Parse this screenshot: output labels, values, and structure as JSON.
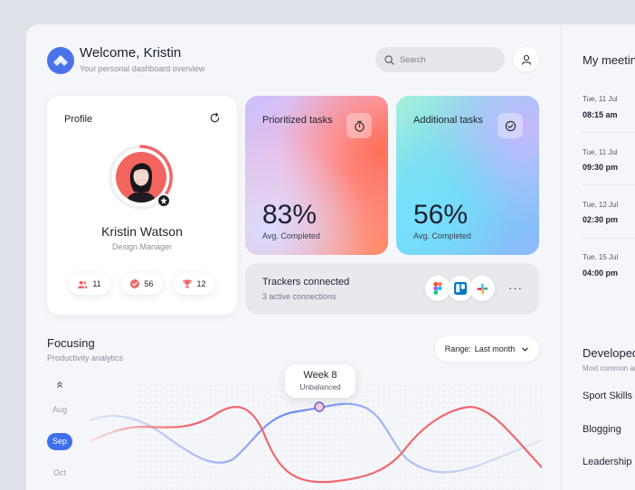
{
  "header": {
    "welcome": "Welcome, Kristin",
    "subtitle": "Your personal dashboard overview",
    "search_placeholder": "Search"
  },
  "profile": {
    "title": "Profile",
    "name": "Kristin Watson",
    "role": "Design Manager",
    "stats": [
      {
        "icon": "users-icon",
        "value": "11"
      },
      {
        "icon": "check-circle-icon",
        "value": "56"
      },
      {
        "icon": "trophy-icon",
        "value": "12"
      }
    ]
  },
  "cards": {
    "prioritized": {
      "title": "Prioritized tasks",
      "value": "83%",
      "sub": "Avg. Completed",
      "icon": "stopwatch-icon"
    },
    "additional": {
      "title": "Additional tasks",
      "value": "56%",
      "sub": "Avg. Completed",
      "icon": "check-circle-icon"
    }
  },
  "trackers": {
    "title": "Trackers connected",
    "sub": "3 active connections",
    "apps": [
      "figma-icon",
      "trello-icon",
      "slack-icon"
    ],
    "more": "···"
  },
  "focusing": {
    "title": "Focusing",
    "subtitle": "Productivity analytics",
    "range_label": "Range:",
    "range_value": "Last month",
    "months": [
      "Aug",
      "Sep",
      "Oct"
    ],
    "active_month": "Sep",
    "tooltip_title": "Week 8",
    "tooltip_sub": "Unbalanced"
  },
  "meetings": {
    "title": "My meetings",
    "items": [
      {
        "date": "Tue, 11 Jul",
        "time": "08:15 am"
      },
      {
        "date": "Tue, 11 Jul",
        "time": "09:30 pm"
      },
      {
        "date": "Tue, 12 Jul",
        "time": "02:30 pm"
      },
      {
        "date": "Tue, 15 Jul",
        "time": "04:00 pm"
      }
    ]
  },
  "developed": {
    "title": "Developed areas",
    "subtitle": "Most common areas of interests",
    "items": [
      "Sport Skills",
      "Blogging",
      "Leadership"
    ]
  },
  "colors": {
    "accent": "#3f6ff0",
    "red_line": "#f0676b",
    "blue_line": "#6a8bf5"
  }
}
